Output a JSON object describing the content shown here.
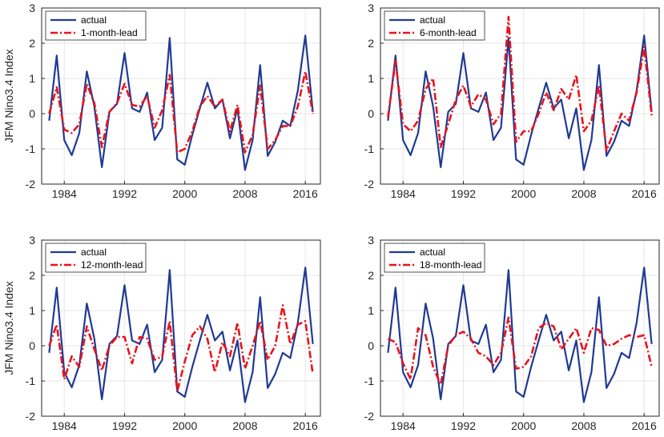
{
  "colors": {
    "actual": "#1f3a93",
    "forecast": "#e8141c",
    "grid": "#e6e6e6",
    "axis": "#262626"
  },
  "chart_data": [
    {
      "type": "line",
      "ylabel": "JFM Nino3.4 Index",
      "xlim": [
        1981,
        2018
      ],
      "ylim": [
        -2,
        3
      ],
      "xticks": [
        1984,
        1992,
        2000,
        2008,
        2016
      ],
      "yticks": [
        -2,
        -1,
        0,
        1,
        2,
        3
      ],
      "grid": true,
      "legend_position": "top-left",
      "x": [
        1982,
        1983,
        1984,
        1985,
        1986,
        1987,
        1988,
        1989,
        1990,
        1991,
        1992,
        1993,
        1994,
        1995,
        1996,
        1997,
        1998,
        1999,
        2000,
        2001,
        2002,
        2003,
        2004,
        2005,
        2006,
        2007,
        2008,
        2009,
        2010,
        2011,
        2012,
        2013,
        2014,
        2015,
        2016,
        2017
      ],
      "series": [
        {
          "name": "actual",
          "style": "solid",
          "values": [
            -0.2,
            1.65,
            -0.75,
            -1.18,
            -0.55,
            1.2,
            0.2,
            -1.52,
            0.05,
            0.28,
            1.72,
            0.15,
            0.05,
            0.6,
            -0.75,
            -0.4,
            2.15,
            -1.3,
            -1.45,
            -0.6,
            0.15,
            0.88,
            0.15,
            0.4,
            -0.7,
            0.15,
            -1.6,
            -0.75,
            1.38,
            -1.2,
            -0.8,
            -0.2,
            -0.35,
            0.65,
            2.22,
            0.05
          ]
        },
        {
          "name": "1-month-lead",
          "style": "dashdot",
          "values": [
            0.0,
            0.75,
            -0.45,
            -0.55,
            -0.3,
            0.85,
            0.3,
            -0.95,
            0.05,
            0.3,
            0.85,
            0.25,
            0.2,
            0.5,
            -0.4,
            0.1,
            1.1,
            -1.1,
            -1.0,
            -0.5,
            0.2,
            0.5,
            0.2,
            0.4,
            -0.5,
            0.25,
            -1.1,
            -0.6,
            0.8,
            -1.0,
            -0.75,
            -0.35,
            -0.35,
            0.2,
            1.2,
            0.0
          ]
        }
      ]
    },
    {
      "type": "line",
      "ylabel": "",
      "xlim": [
        1981,
        2018
      ],
      "ylim": [
        -2,
        3
      ],
      "xticks": [
        1984,
        1992,
        2000,
        2008,
        2016
      ],
      "yticks": [
        -2,
        -1,
        0,
        1,
        2,
        3
      ],
      "grid": true,
      "legend_position": "top-left",
      "x": [
        1982,
        1983,
        1984,
        1985,
        1986,
        1987,
        1988,
        1989,
        1990,
        1991,
        1992,
        1993,
        1994,
        1995,
        1996,
        1997,
        1998,
        1999,
        2000,
        2001,
        2002,
        2003,
        2004,
        2005,
        2006,
        2007,
        2008,
        2009,
        2010,
        2011,
        2012,
        2013,
        2014,
        2015,
        2016,
        2017
      ],
      "series": [
        {
          "name": "actual",
          "style": "solid",
          "values": [
            -0.2,
            1.65,
            -0.75,
            -1.18,
            -0.55,
            1.2,
            0.2,
            -1.52,
            0.05,
            0.28,
            1.72,
            0.15,
            0.05,
            0.6,
            -0.75,
            -0.4,
            2.15,
            -1.3,
            -1.45,
            -0.6,
            0.15,
            0.88,
            0.15,
            0.4,
            -0.7,
            0.15,
            -1.6,
            -0.75,
            1.38,
            -1.2,
            -0.8,
            -0.2,
            -0.35,
            0.65,
            2.22,
            0.05
          ]
        },
        {
          "name": "6-month-lead",
          "style": "dashdot",
          "values": [
            -0.1,
            1.5,
            -0.3,
            -0.5,
            -0.2,
            0.7,
            1.0,
            -0.95,
            -0.3,
            0.4,
            0.8,
            0.2,
            0.55,
            0.4,
            -0.3,
            0.0,
            2.75,
            -0.8,
            -0.5,
            -0.5,
            0.0,
            0.6,
            0.1,
            0.7,
            0.4,
            1.1,
            -0.5,
            -0.2,
            0.8,
            -1.05,
            -0.5,
            0.0,
            -0.2,
            0.6,
            1.9,
            -0.05
          ]
        }
      ]
    },
    {
      "type": "line",
      "ylabel": "JFM Nino3.4 Index",
      "xlim": [
        1981,
        2018
      ],
      "ylim": [
        -2,
        3
      ],
      "xticks": [
        1984,
        1992,
        2000,
        2008,
        2016
      ],
      "yticks": [
        -2,
        -1,
        0,
        1,
        2,
        3
      ],
      "grid": true,
      "legend_position": "top-left",
      "x": [
        1982,
        1983,
        1984,
        1985,
        1986,
        1987,
        1988,
        1989,
        1990,
        1991,
        1992,
        1993,
        1994,
        1995,
        1996,
        1997,
        1998,
        1999,
        2000,
        2001,
        2002,
        2003,
        2004,
        2005,
        2006,
        2007,
        2008,
        2009,
        2010,
        2011,
        2012,
        2013,
        2014,
        2015,
        2016,
        2017
      ],
      "series": [
        {
          "name": "actual",
          "style": "solid",
          "values": [
            -0.2,
            1.65,
            -0.75,
            -1.18,
            -0.55,
            1.2,
            0.2,
            -1.52,
            0.05,
            0.28,
            1.72,
            0.15,
            0.05,
            0.6,
            -0.75,
            -0.4,
            2.15,
            -1.3,
            -1.45,
            -0.6,
            0.15,
            0.88,
            0.15,
            0.4,
            -0.7,
            0.15,
            -1.6,
            -0.75,
            1.38,
            -1.2,
            -0.8,
            -0.2,
            -0.35,
            0.65,
            2.22,
            0.05
          ]
        },
        {
          "name": "12-month-lead",
          "style": "dashdot",
          "values": [
            0.0,
            0.6,
            -0.95,
            -0.3,
            -0.6,
            0.55,
            -0.1,
            -0.7,
            0.0,
            0.25,
            0.25,
            -0.5,
            0.25,
            0.2,
            -0.4,
            -0.3,
            0.7,
            -1.3,
            -0.45,
            0.3,
            0.55,
            0.2,
            -0.75,
            0.1,
            -0.3,
            0.65,
            -0.65,
            0.0,
            0.7,
            -0.4,
            0.0,
            1.15,
            0.05,
            0.6,
            0.7,
            -0.8
          ]
        }
      ]
    },
    {
      "type": "line",
      "ylabel": "",
      "xlim": [
        1981,
        2018
      ],
      "ylim": [
        -2,
        3
      ],
      "xticks": [
        1984,
        1992,
        2000,
        2008,
        2016
      ],
      "yticks": [
        -2,
        -1,
        0,
        1,
        2,
        3
      ],
      "grid": true,
      "legend_position": "top-left",
      "x": [
        1982,
        1983,
        1984,
        1985,
        1986,
        1987,
        1988,
        1989,
        1990,
        1991,
        1992,
        1993,
        1994,
        1995,
        1996,
        1997,
        1998,
        1999,
        2000,
        2001,
        2002,
        2003,
        2004,
        2005,
        2006,
        2007,
        2008,
        2009,
        2010,
        2011,
        2012,
        2013,
        2014,
        2015,
        2016,
        2017
      ],
      "series": [
        {
          "name": "actual",
          "style": "solid",
          "values": [
            -0.2,
            1.65,
            -0.75,
            -1.18,
            -0.55,
            1.2,
            0.2,
            -1.52,
            0.05,
            0.28,
            1.72,
            0.15,
            0.05,
            0.6,
            -0.75,
            -0.4,
            2.15,
            -1.3,
            -1.45,
            -0.6,
            0.15,
            0.88,
            0.15,
            0.4,
            -0.7,
            0.15,
            -1.6,
            -0.75,
            1.38,
            -1.2,
            -0.8,
            -0.2,
            -0.35,
            0.65,
            2.22,
            0.05
          ]
        },
        {
          "name": "18-month-lead",
          "style": "dashdot",
          "values": [
            0.2,
            0.1,
            -0.5,
            -0.95,
            0.5,
            0.3,
            -0.6,
            -1.1,
            0.0,
            0.3,
            0.4,
            0.2,
            -0.2,
            -0.3,
            -0.55,
            -0.2,
            0.8,
            -0.65,
            -0.6,
            -0.3,
            0.5,
            0.65,
            0.55,
            -0.1,
            0.2,
            0.5,
            -0.2,
            0.5,
            0.45,
            0.0,
            0.05,
            0.2,
            0.3,
            0.25,
            0.3,
            -0.6
          ]
        }
      ]
    }
  ]
}
